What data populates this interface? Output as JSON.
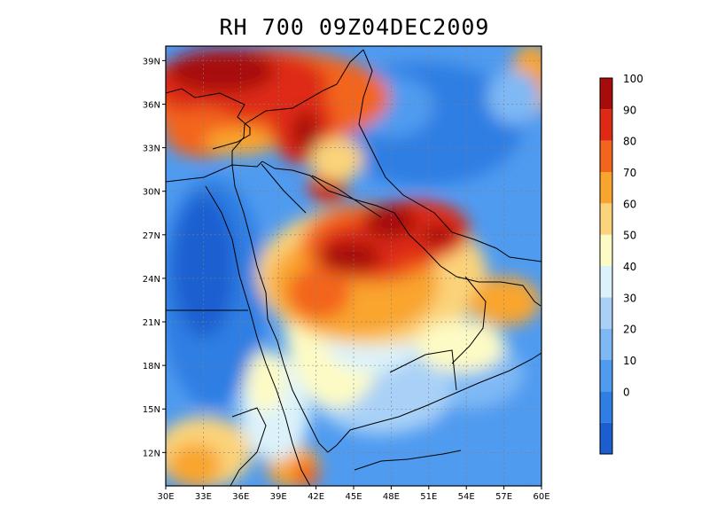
{
  "title": "RH 700 09Z04DEC2009",
  "map": {
    "lon_range": [
      30,
      60
    ],
    "lat_range": [
      9.7,
      40
    ],
    "lat_ticks": [
      {
        "value": 39,
        "label": "39N"
      },
      {
        "value": 36,
        "label": "36N"
      },
      {
        "value": 33,
        "label": "33N"
      },
      {
        "value": 30,
        "label": "30N"
      },
      {
        "value": 27,
        "label": "27N"
      },
      {
        "value": 24,
        "label": "24N"
      },
      {
        "value": 21,
        "label": "21N"
      },
      {
        "value": 18,
        "label": "18N"
      },
      {
        "value": 15,
        "label": "15N"
      },
      {
        "value": 12,
        "label": "12N"
      }
    ],
    "lon_ticks": [
      {
        "value": 30,
        "label": "30E"
      },
      {
        "value": 33,
        "label": "33E"
      },
      {
        "value": 36,
        "label": "36E"
      },
      {
        "value": 39,
        "label": "39E"
      },
      {
        "value": 42,
        "label": "42E"
      },
      {
        "value": 45,
        "label": "45E"
      },
      {
        "value": 48,
        "label": "48E"
      },
      {
        "value": 51,
        "label": "51E"
      },
      {
        "value": 54,
        "label": "54E"
      },
      {
        "value": 57,
        "label": "57E"
      },
      {
        "value": 60,
        "label": "60E"
      }
    ],
    "grid": true
  },
  "colorbar": {
    "bins": [
      {
        "color": "#1c5ed0"
      },
      {
        "color": "#2f7ee3",
        "label": "0"
      },
      {
        "color": "#4f9bf0",
        "label": "10"
      },
      {
        "color": "#7fb9f5",
        "label": "20"
      },
      {
        "color": "#a9d1f7",
        "label": "30"
      },
      {
        "color": "#dcf2fb",
        "label": "40"
      },
      {
        "color": "#fdfbc5",
        "label": "50"
      },
      {
        "color": "#fbd37a",
        "label": "60"
      },
      {
        "color": "#f9a52d",
        "label": "70"
      },
      {
        "color": "#f3651c",
        "label": "80"
      },
      {
        "color": "#de2a14",
        "label": "90"
      },
      {
        "color": "#a80c0a",
        "label": "100"
      }
    ]
  }
}
